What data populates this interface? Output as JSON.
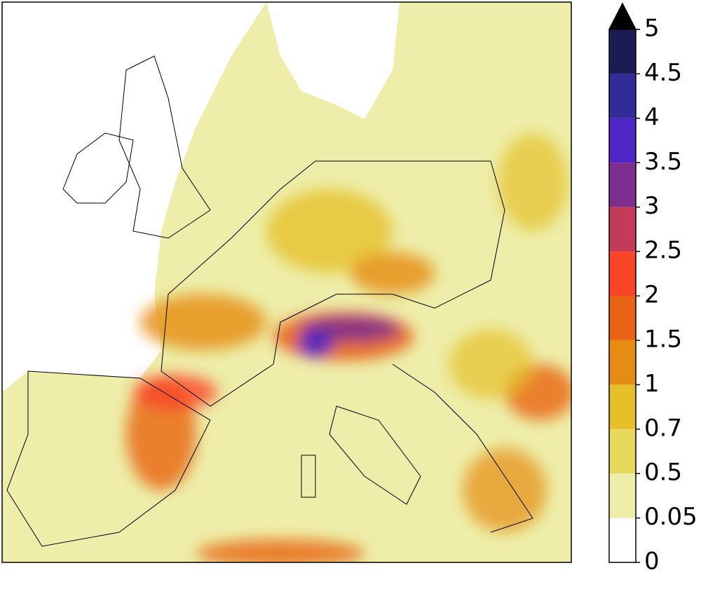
{
  "colorbar": {
    "ticks": [
      0,
      0.05,
      0.5,
      0.7,
      1,
      1.5,
      2,
      2.5,
      3,
      3.5,
      4,
      4.5,
      5
    ],
    "colors": [
      "#ffffff",
      "#eeeeaa",
      "#e8d85c",
      "#e6c02a",
      "#e68c14",
      "#e86414",
      "#fa4428",
      "#c23c5a",
      "#7e2e8e",
      "#4e26c6",
      "#322c96",
      "#1c1c54"
    ],
    "extend": "max",
    "extend_color": "#000000"
  }
}
